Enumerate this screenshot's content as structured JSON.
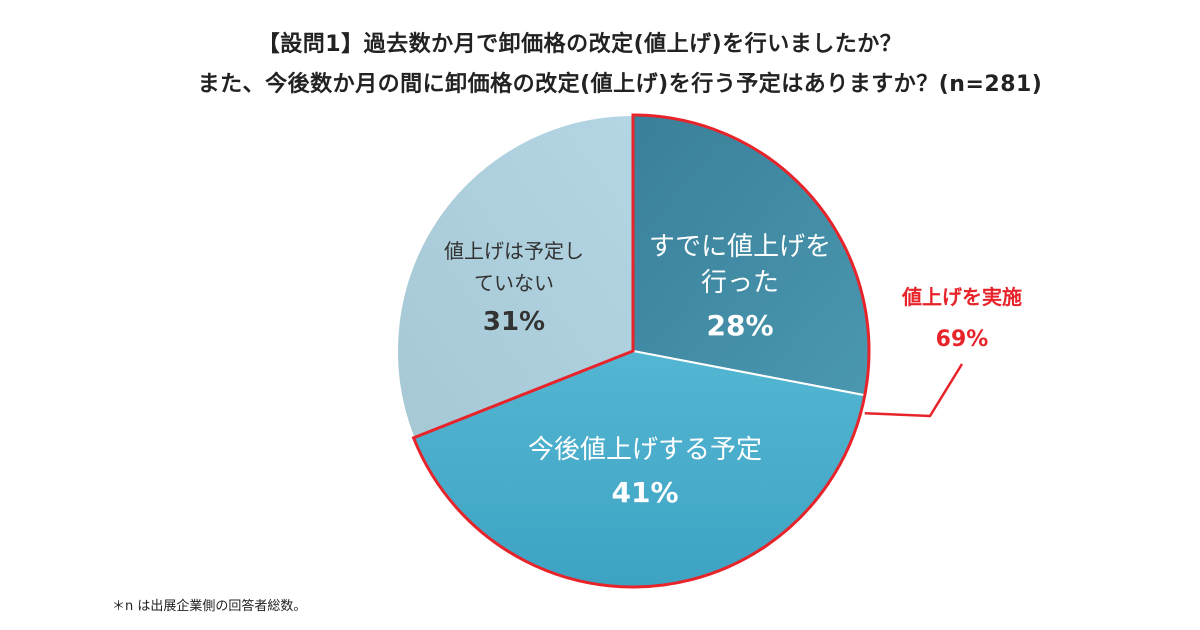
{
  "header": {
    "title_line1": "【設問1】過去数か月で卸価格の改定(値上げ)を行いましたか？",
    "title_line2": "また、今後数か月の間に卸価格の改定(値上げ)を行う予定はありますか？(n=281)"
  },
  "chart_data": {
    "type": "pie",
    "slices": [
      {
        "label_lines": [
          "すでに値上げを",
          "行った"
        ],
        "value": 28,
        "value_label": "28%",
        "color": "#3f8ba3",
        "text_color": "#ffffff"
      },
      {
        "label_lines": [
          "今後値上げする予定"
        ],
        "value": 41,
        "value_label": "41%",
        "color": "#45a9c8",
        "text_color": "#ffffff"
      },
      {
        "label_lines": [
          "値上げは予定し",
          "ていない"
        ],
        "value": 31,
        "value_label": "31%",
        "color": "#a9cede",
        "text_color": "#333333"
      }
    ],
    "start": "12 o'clock",
    "direction": "clockwise",
    "highlight": {
      "slice_indices": [
        0,
        1
      ],
      "label": "値上げを実施",
      "value_label": "69%",
      "color": "#e8242b"
    }
  },
  "footnote": "＊n は出展企業側の回答者総数。"
}
